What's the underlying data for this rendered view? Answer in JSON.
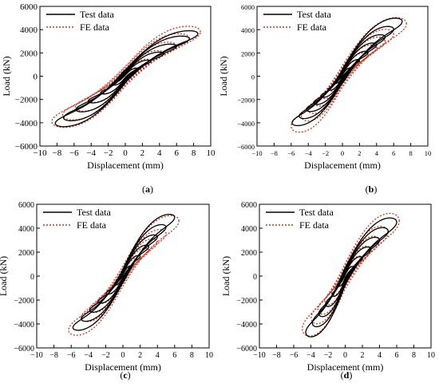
{
  "figure": {
    "colors": {
      "test": "#000000",
      "fe": "#d1341c",
      "axis": "#000000"
    }
  },
  "chart_data": [
    {
      "panel_label": "(a)",
      "type": "line",
      "xlabel": "Displacement (mm)",
      "ylabel": "Load (kN)",
      "xlim": [
        -10,
        10
      ],
      "ylim": [
        -6000,
        6000
      ],
      "xticks": [
        -10,
        -8,
        -6,
        -4,
        -2,
        0,
        2,
        4,
        6,
        8,
        10
      ],
      "yticks": [
        -6000,
        -4000,
        -2000,
        0,
        2000,
        4000,
        6000
      ],
      "legend": {
        "placement": "top-left",
        "entries": [
          "Test data",
          "FE data"
        ]
      },
      "series": [
        {
          "name": "Test data",
          "style": "solid",
          "color": "#000000",
          "amplitudes": [
            1.5,
            3.0,
            4.5,
            6.0,
            7.5,
            8.5
          ],
          "x_neg": 8.2,
          "y_pos": 3650,
          "y_neg": 4050,
          "width": 0.24
        },
        {
          "name": "FE data",
          "style": "dotted",
          "color": "#d1341c",
          "amplitudes": [
            1.5,
            3.0,
            4.5,
            6.0,
            7.5,
            8.8
          ],
          "x_neg": 8.6,
          "y_pos": 3800,
          "y_neg": 3900,
          "width": 0.36
        }
      ]
    },
    {
      "panel_label": "(b)",
      "type": "line",
      "xlabel": "Displacement (mm)",
      "ylabel": "Load (kN)",
      "xlim": [
        -10,
        10
      ],
      "ylim": [
        -6000,
        6000
      ],
      "xticks": [
        -10,
        -8,
        -6,
        -4,
        -2,
        0,
        2,
        4,
        6,
        8,
        10
      ],
      "yticks": [
        -6000,
        -4000,
        -2000,
        0,
        2000,
        4000,
        6000
      ],
      "legend": {
        "placement": "top-left",
        "entries": [
          "Test data",
          "FE data"
        ]
      },
      "series": [
        {
          "name": "Test data",
          "style": "solid",
          "color": "#000000",
          "amplitudes": [
            1.0,
            2.0,
            3.0,
            4.0,
            5.0,
            6.0,
            7.0
          ],
          "x_neg": 5.9,
          "y_pos": 4700,
          "y_neg": 4000,
          "width": 0.22
        },
        {
          "name": "FE data",
          "style": "dotted",
          "color": "#d1341c",
          "amplitudes": [
            1.0,
            2.0,
            3.0,
            4.0,
            5.0,
            6.0,
            7.5
          ],
          "x_neg": 6.0,
          "y_pos": 4500,
          "y_neg": 4300,
          "width": 0.34
        }
      ]
    },
    {
      "panel_label": "(c)",
      "type": "line",
      "xlabel": "Displacement (mm)",
      "ylabel": "Load (kN)",
      "xlim": [
        -10,
        10
      ],
      "ylim": [
        -6000,
        6000
      ],
      "xticks": [
        -10,
        -8,
        -6,
        -4,
        -2,
        0,
        2,
        4,
        6,
        8,
        10
      ],
      "yticks": [
        -6000,
        -4000,
        -2000,
        0,
        2000,
        4000,
        6000
      ],
      "legend": {
        "placement": "top-left",
        "entries": [
          "Test data",
          "FE data"
        ]
      },
      "series": [
        {
          "name": "Test data",
          "style": "solid",
          "color": "#000000",
          "amplitudes": [
            1.0,
            2.0,
            3.0,
            4.0,
            5.0,
            6.0
          ],
          "x_neg": 5.8,
          "y_pos": 4900,
          "y_neg": 4300,
          "width": 0.2
        },
        {
          "name": "FE data",
          "style": "dotted",
          "color": "#d1341c",
          "amplitudes": [
            1.0,
            2.0,
            3.0,
            4.0,
            5.0,
            6.5
          ],
          "x_neg": 6.3,
          "y_pos": 4600,
          "y_neg": 4500,
          "width": 0.3
        }
      ]
    },
    {
      "panel_label": "(d)",
      "type": "line",
      "xlabel": "Displacement (mm)",
      "ylabel": "Load (kN)",
      "xlim": [
        -10,
        10
      ],
      "ylim": [
        -6000,
        6000
      ],
      "xticks": [
        -10,
        -8,
        -6,
        -4,
        -2,
        0,
        2,
        4,
        6,
        8,
        10
      ],
      "yticks": [
        -6000,
        -4000,
        -2000,
        0,
        2000,
        4000,
        6000
      ],
      "legend": {
        "placement": "top-left",
        "entries": [
          "Test data",
          "FE data"
        ]
      },
      "series": [
        {
          "name": "Test data",
          "style": "solid",
          "color": "#000000",
          "amplitudes": [
            1.0,
            2.0,
            3.0,
            4.0,
            5.0,
            6.0
          ],
          "x_neg": 4.6,
          "y_pos": 4500,
          "y_neg": 4700,
          "width": 0.26
        },
        {
          "name": "FE data",
          "style": "dotted",
          "color": "#d1341c",
          "amplitudes": [
            1.0,
            2.0,
            3.0,
            4.0,
            5.0,
            6.3
          ],
          "x_neg": 5.0,
          "y_pos": 4600,
          "y_neg": 4400,
          "width": 0.38
        }
      ]
    }
  ]
}
